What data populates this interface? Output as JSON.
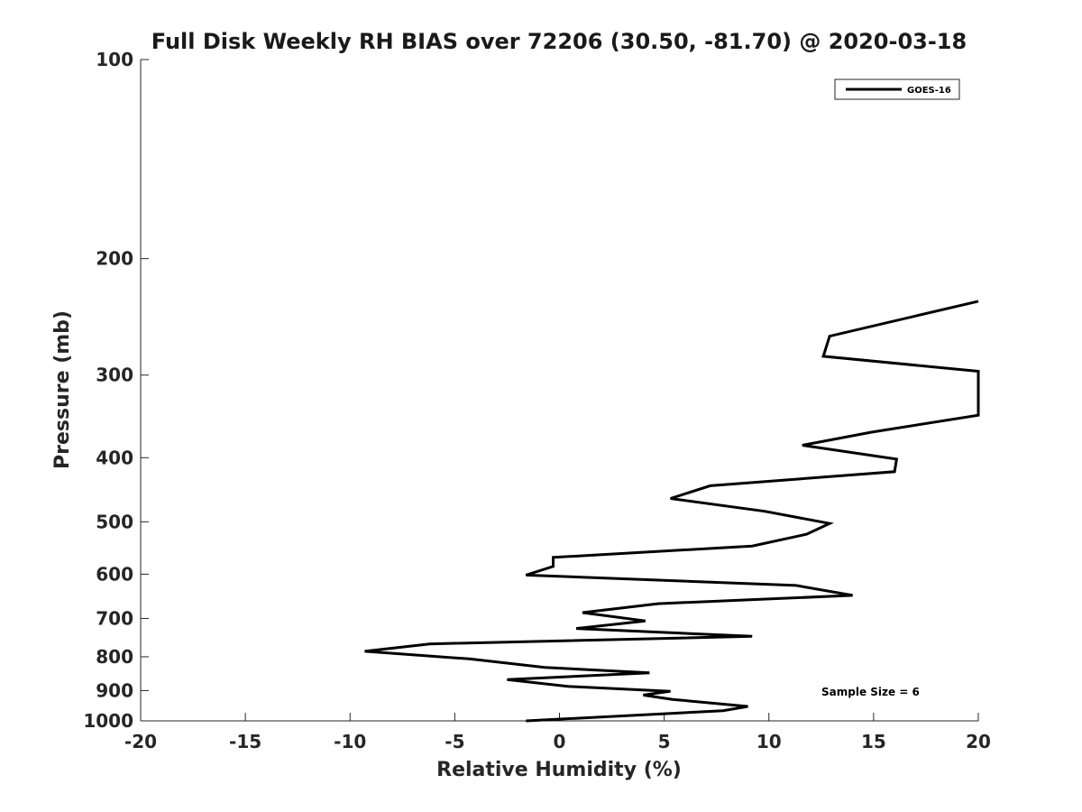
{
  "chart_data": {
    "type": "line",
    "title": "Full Disk Weekly RH BIAS over 72206 (30.50, -81.70) @ 2020-03-18",
    "xlabel": "Relative Humidity (%)",
    "ylabel": "Pressure (mb)",
    "xlim": [
      -20,
      20
    ],
    "ylim": [
      100,
      1000
    ],
    "y_scale": "log",
    "y_reversed": true,
    "x_ticks": [
      "-20",
      "-15",
      "-10",
      "-5",
      "0",
      "5",
      "10",
      "15",
      "20"
    ],
    "x_tick_values": [
      -20,
      -15,
      -10,
      -5,
      0,
      5,
      10,
      15,
      20
    ],
    "y_ticks": [
      "100",
      "200",
      "300",
      "400",
      "500",
      "600",
      "700",
      "800",
      "900",
      "1000"
    ],
    "y_tick_values": [
      100,
      200,
      300,
      400,
      500,
      600,
      700,
      800,
      900,
      1000
    ],
    "grid": false,
    "legend_position": "top-right",
    "annotation": "Sample Size = 6",
    "series": [
      {
        "name": "GOES-16",
        "color": "#000000",
        "points": [
          {
            "x": 20.0,
            "y": 232
          },
          {
            "x": 12.9,
            "y": 262
          },
          {
            "x": 12.6,
            "y": 281
          },
          {
            "x": 20.0,
            "y": 296
          },
          {
            "x": 20.0,
            "y": 345
          },
          {
            "x": 14.9,
            "y": 366
          },
          {
            "x": 11.6,
            "y": 383
          },
          {
            "x": 16.1,
            "y": 402
          },
          {
            "x": 16.0,
            "y": 420
          },
          {
            "x": 7.2,
            "y": 441
          },
          {
            "x": 5.3,
            "y": 461
          },
          {
            "x": 9.8,
            "y": 482
          },
          {
            "x": 12.9,
            "y": 503
          },
          {
            "x": 11.8,
            "y": 522
          },
          {
            "x": 9.2,
            "y": 544
          },
          {
            "x": -0.3,
            "y": 566
          },
          {
            "x": -0.3,
            "y": 584
          },
          {
            "x": -1.6,
            "y": 602
          },
          {
            "x": 11.3,
            "y": 624
          },
          {
            "x": 14.0,
            "y": 646
          },
          {
            "x": 4.7,
            "y": 665
          },
          {
            "x": 1.1,
            "y": 686
          },
          {
            "x": 4.1,
            "y": 706
          },
          {
            "x": 0.8,
            "y": 725
          },
          {
            "x": 9.2,
            "y": 745
          },
          {
            "x": -6.2,
            "y": 765
          },
          {
            "x": -9.3,
            "y": 785
          },
          {
            "x": -4.3,
            "y": 806
          },
          {
            "x": -0.7,
            "y": 830
          },
          {
            "x": 4.3,
            "y": 846
          },
          {
            "x": -2.5,
            "y": 866
          },
          {
            "x": 0.4,
            "y": 887
          },
          {
            "x": 5.3,
            "y": 902
          },
          {
            "x": 4.0,
            "y": 914
          },
          {
            "x": 5.4,
            "y": 928
          },
          {
            "x": 9.0,
            "y": 951
          },
          {
            "x": 7.8,
            "y": 965
          },
          {
            "x": -1.6,
            "y": 1000
          }
        ]
      }
    ]
  }
}
